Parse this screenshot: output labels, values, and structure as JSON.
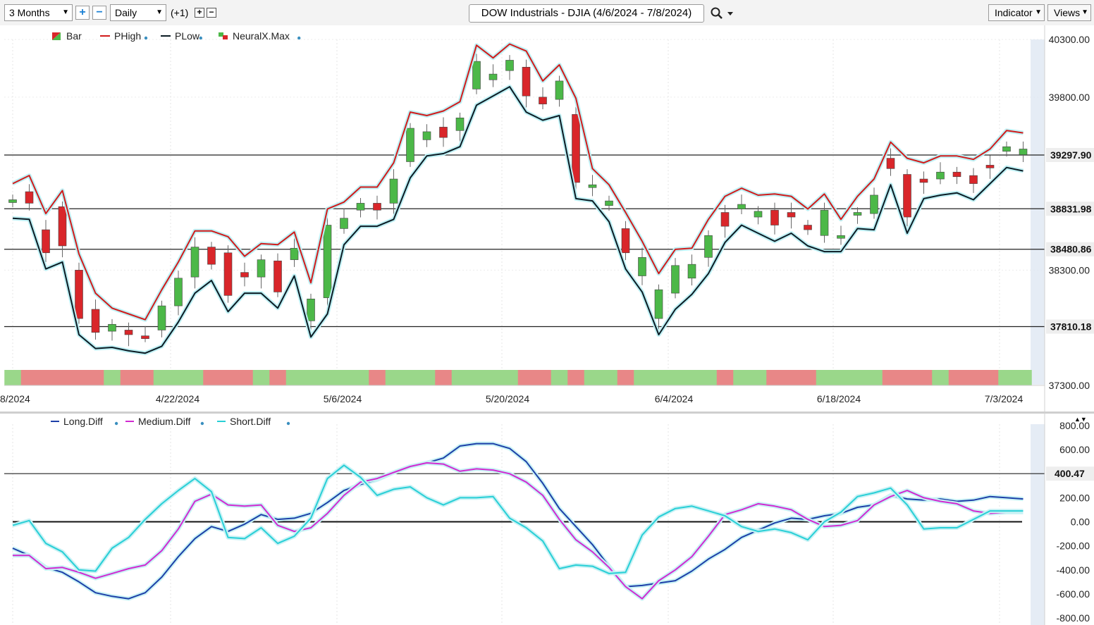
{
  "toolbar": {
    "period": "3 Months",
    "interval": "Daily",
    "offset": "(+1)",
    "title": "DOW Industrials - DJIA (4/6/2024 - 7/8/2024)",
    "indicator_label": "Indicator",
    "views_label": "Views"
  },
  "colors": {
    "up": "#4cb848",
    "down": "#d9262a",
    "phigh": "#d11b1b",
    "plow": "#0b1b24",
    "long": "#1d3fa8",
    "medium": "#d12ad1",
    "short": "#28cfd6",
    "band_green": "#9ad78a",
    "band_red": "#e88787",
    "band_yellow": "#fbf49a"
  },
  "price_chart": {
    "legend": [
      "Bar",
      "PHigh",
      "PLow",
      "NeuralX.Max"
    ],
    "y_ticks": [
      "40300.00",
      "39800.00",
      "38300.00",
      "37300.00"
    ],
    "hlines": [
      {
        "value": 39297.9,
        "label": "39297.90"
      },
      {
        "value": 38831.98,
        "label": "38831.98"
      },
      {
        "value": 38480.86,
        "label": "38480.86"
      },
      {
        "value": 37810.18,
        "label": "37810.18"
      }
    ],
    "x_labels": [
      "8/2024",
      "4/22/2024",
      "5/6/2024",
      "5/20/2024",
      "6/4/2024",
      "6/18/2024",
      "7/3/2024"
    ]
  },
  "indicator_chart": {
    "legend": [
      "Long.Diff",
      "Medium.Diff",
      "Short.Diff"
    ],
    "y_ticks": [
      "800.00",
      "600.00",
      "400.00",
      "200.00",
      "0.00",
      "-200.00",
      "-400.00",
      "-600.00",
      "-800.00"
    ],
    "hline": {
      "value": 400.47,
      "label": "400.47"
    }
  },
  "chart_data": [
    {
      "type": "candlestick",
      "title": "DOW Industrials - DJIA (4/6/2024 - 7/8/2024)",
      "ylim": [
        37300,
        40300
      ],
      "x": [
        "4/8",
        "4/9",
        "4/10",
        "4/11",
        "4/12",
        "4/15",
        "4/16",
        "4/17",
        "4/18",
        "4/19",
        "4/22",
        "4/23",
        "4/24",
        "4/25",
        "4/26",
        "4/29",
        "4/30",
        "5/1",
        "5/2",
        "5/3",
        "5/6",
        "5/7",
        "5/8",
        "5/9",
        "5/10",
        "5/13",
        "5/14",
        "5/15",
        "5/16",
        "5/17",
        "5/20",
        "5/21",
        "5/22",
        "5/23",
        "5/24",
        "5/28",
        "5/29",
        "5/30",
        "5/31",
        "6/3",
        "6/4",
        "6/5",
        "6/6",
        "6/7",
        "6/10",
        "6/11",
        "6/12",
        "6/13",
        "6/14",
        "6/17",
        "6/18",
        "6/20",
        "6/21",
        "6/24",
        "6/25",
        "6/26",
        "6/27",
        "6/28",
        "7/1",
        "7/2",
        "7/3",
        "7/5"
      ],
      "series": [
        {
          "name": "Bar",
          "open": [
            38890,
            38980,
            38650,
            38850,
            38300,
            37960,
            37770,
            37780,
            37730,
            37780,
            37990,
            38240,
            38500,
            38450,
            38280,
            38240,
            38380,
            38390,
            37860,
            38060,
            38660,
            38820,
            38880,
            38880,
            39240,
            39430,
            39540,
            39510,
            39870,
            39950,
            40030,
            40060,
            39800,
            39780,
            39650,
            39040,
            38860,
            38660,
            38250,
            37880,
            38100,
            38230,
            38410,
            38800,
            38830,
            38760,
            38820,
            38800,
            38690,
            38600,
            38600,
            38800,
            38790,
            39270,
            39130,
            39090,
            39090,
            39150,
            39120,
            39210,
            39330,
            39300
          ],
          "close": [
            38910,
            38880,
            38450,
            38510,
            37880,
            37760,
            37830,
            37740,
            37720,
            37990,
            38230,
            38500,
            38350,
            38080,
            38240,
            38390,
            38110,
            38490,
            38050,
            38690,
            38750,
            38880,
            38820,
            39090,
            39530,
            39500,
            39450,
            39620,
            40110,
            40000,
            40120,
            39810,
            39740,
            39940,
            39060,
            39040,
            38900,
            38450,
            38410,
            38130,
            38340,
            38350,
            38600,
            38680,
            38870,
            38810,
            38690,
            38760,
            38650,
            38820,
            38600,
            38800,
            38950,
            39180,
            38760,
            39060,
            39150,
            39110,
            39050,
            39190,
            39370,
            39350
          ]
        }
      ]
    },
    {
      "type": "line",
      "ylim": [
        -800,
        800
      ],
      "series": [
        {
          "name": "Long.Diff",
          "values": [
            -220,
            -280,
            -380,
            -420,
            -500,
            -590,
            -620,
            -640,
            -590,
            -460,
            -290,
            -140,
            -40,
            -80,
            -20,
            60,
            20,
            30,
            70,
            160,
            260,
            310,
            350,
            410,
            460,
            490,
            530,
            630,
            650,
            650,
            610,
            500,
            320,
            110,
            -40,
            -190,
            -370,
            -540,
            -530,
            -510,
            -490,
            -410,
            -310,
            -230,
            -130,
            -70,
            -10,
            30,
            20,
            50,
            70,
            120,
            140,
            220,
            190,
            180,
            190,
            170,
            180,
            210,
            200,
            190
          ]
        },
        {
          "name": "Medium.Diff",
          "values": [
            -280,
            -280,
            -390,
            -380,
            -420,
            -470,
            -430,
            -390,
            -360,
            -240,
            -60,
            170,
            230,
            140,
            130,
            140,
            -30,
            -80,
            -50,
            70,
            220,
            330,
            360,
            410,
            460,
            490,
            480,
            420,
            440,
            430,
            400,
            330,
            220,
            20,
            -150,
            -250,
            -380,
            -540,
            -640,
            -490,
            -400,
            -290,
            -120,
            60,
            100,
            150,
            130,
            100,
            20,
            -40,
            -30,
            10,
            140,
            210,
            260,
            200,
            170,
            150,
            90,
            70,
            80,
            80
          ]
        },
        {
          "name": "Short.Diff",
          "values": [
            -30,
            10,
            -180,
            -250,
            -400,
            -410,
            -220,
            -130,
            20,
            150,
            260,
            360,
            250,
            -130,
            -140,
            -50,
            -180,
            -120,
            30,
            360,
            470,
            370,
            220,
            270,
            290,
            200,
            140,
            200,
            200,
            210,
            30,
            -50,
            -160,
            -390,
            -360,
            -370,
            -430,
            -420,
            -110,
            40,
            110,
            130,
            90,
            50,
            -40,
            -80,
            -60,
            -90,
            -150,
            0,
            80,
            210,
            240,
            280,
            140,
            -60,
            -50,
            -50,
            20,
            90,
            90,
            90
          ]
        }
      ]
    }
  ]
}
